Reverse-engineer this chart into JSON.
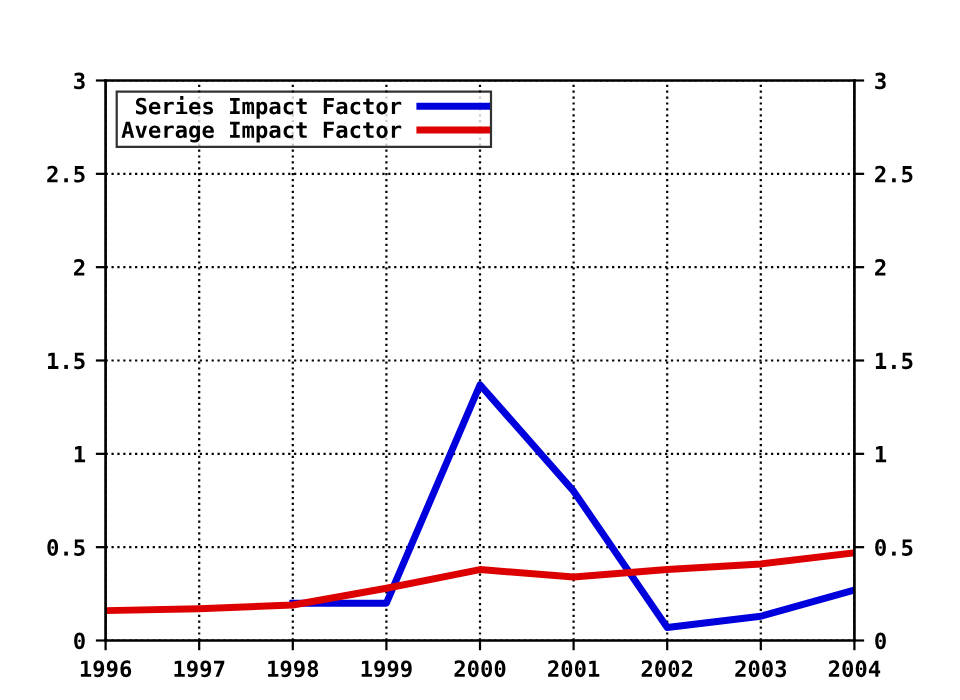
{
  "chart_data": {
    "type": "line",
    "categories": [
      "1996",
      "1997",
      "1998",
      "1999",
      "2000",
      "2001",
      "2002",
      "2003",
      "2004"
    ],
    "series": [
      {
        "name": "Series Impact Factor",
        "color": "#0000dd",
        "values": [
          null,
          null,
          0.2,
          0.2,
          1.37,
          0.8,
          0.07,
          0.13,
          0.27
        ]
      },
      {
        "name": "Average Impact Factor",
        "color": "#dd0000",
        "values": [
          0.16,
          0.17,
          0.19,
          0.28,
          0.38,
          0.34,
          0.38,
          0.41,
          0.47
        ]
      }
    ],
    "ylim": [
      0,
      3
    ],
    "yticks": [
      0,
      0.5,
      1,
      1.5,
      2,
      2.5,
      3
    ],
    "y2lim": [
      0,
      3
    ],
    "y2ticks": [
      0,
      0.5,
      1,
      1.5,
      2,
      2.5,
      3
    ],
    "grid": true,
    "legend": "top left",
    "line_style": "solid",
    "marker": "none"
  }
}
